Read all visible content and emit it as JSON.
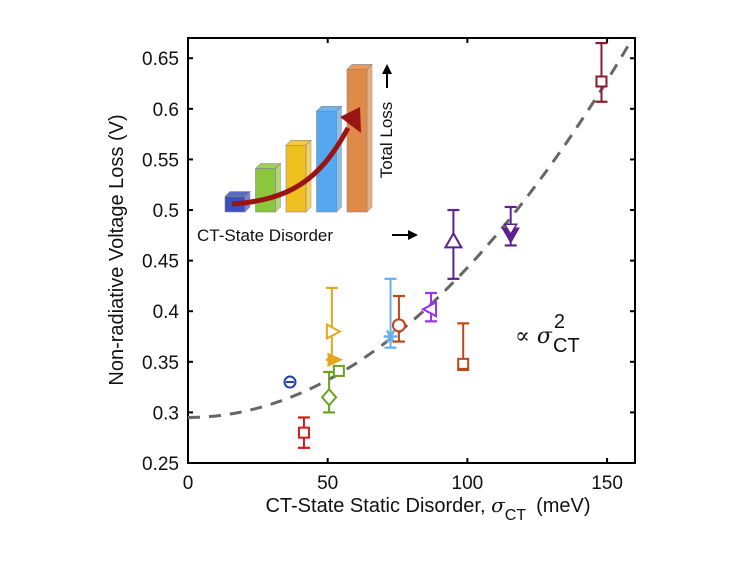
{
  "chart_data": {
    "type": "scatter",
    "title": "",
    "xlabel": "CT-State Static Disorder, ",
    "xlabel_symbol": "σ",
    "xlabel_sub": "CT",
    "xlabel_unit": "(meV)",
    "ylabel": "Non-radiative Voltage Loss (V)",
    "xlim": [
      0,
      160
    ],
    "ylim": [
      0.25,
      0.67
    ],
    "xticks": [
      0,
      50,
      100,
      150
    ],
    "xtick_labels": [
      "0",
      "50",
      "100",
      "150"
    ],
    "yticks": [
      0.25,
      0.3,
      0.35,
      0.4,
      0.45,
      0.5,
      0.55,
      0.6,
      0.65
    ],
    "ytick_labels": [
      "0.25",
      "0.3",
      "0.35",
      "0.4",
      "0.45",
      "0.5",
      "0.55",
      "0.6",
      "0.65"
    ],
    "grid": false,
    "series": [
      {
        "name": "red-square",
        "marker": "square",
        "color": "#d7191c",
        "x": 41.5,
        "y": 0.28,
        "yerr_low": 0.265,
        "yerr_high": 0.295
      },
      {
        "name": "blue-theta",
        "marker": "theta-circle",
        "color": "#1f3fb0",
        "x": 36.5,
        "y": 0.33
      },
      {
        "name": "green-diamond",
        "marker": "diamond",
        "color": "#6aa121",
        "x": 50.5,
        "y": 0.315,
        "yerr_low": 0.3,
        "yerr_high": 0.34
      },
      {
        "name": "green-square",
        "marker": "square",
        "color": "#6aa121",
        "x": 54,
        "y": 0.341
      },
      {
        "name": "gold-triangle-right",
        "marker": "triangle-right",
        "color": "#e3a81b",
        "x": 51.5,
        "y": 0.38,
        "yerr_low": 0.352,
        "yerr_high": 0.423
      },
      {
        "name": "gold-filled-triangle",
        "marker": "triangle-right-filled",
        "color": "#e3a81b",
        "x": 52,
        "y": 0.352
      },
      {
        "name": "lightblue-star",
        "marker": "star",
        "color": "#6aaee8",
        "x": 72.5,
        "y": 0.375,
        "yerr_low": 0.364,
        "yerr_high": 0.432
      },
      {
        "name": "rust-circle",
        "marker": "circle",
        "color": "#c0461a",
        "x": 75.5,
        "y": 0.386,
        "yerr_low": 0.37,
        "yerr_high": 0.415
      },
      {
        "name": "violet-triangle-left",
        "marker": "triangle-left",
        "color": "#9b30f0",
        "x": 87,
        "y": 0.402,
        "yerr_low": 0.39,
        "yerr_high": 0.418
      },
      {
        "name": "purple-triangle-up",
        "marker": "triangle-up",
        "color": "#5b2290",
        "x": 95,
        "y": 0.468,
        "yerr_low": 0.432,
        "yerr_high": 0.5
      },
      {
        "name": "rust-square",
        "marker": "square",
        "color": "#c0461a",
        "x": 98.5,
        "y": 0.348,
        "yerr_low": 0.342,
        "yerr_high": 0.388
      },
      {
        "name": "purple-triangle-down",
        "marker": "triangle-down-filled",
        "color": "#5b2290",
        "x": 115.5,
        "y": 0.476,
        "yerr_low": 0.465,
        "yerr_high": 0.503
      },
      {
        "name": "maroon-square",
        "marker": "square",
        "color": "#8b1a2b",
        "x": 148,
        "y": 0.627,
        "yerr_low": 0.607,
        "yerr_high": 0.665
      }
    ],
    "fit": {
      "type": "quadratic",
      "style": "dashed",
      "color": "#666666",
      "formula": "y = 0.295 + 1.48e-5 * x^2",
      "a": 1.48e-05,
      "c": 0.295,
      "x_range": [
        0,
        160
      ]
    },
    "annotation": {
      "prefix": "∝ ",
      "symbol": "σ",
      "superscript": "2",
      "subscript": "CT"
    },
    "inset": {
      "type": "bar",
      "xlabel": "CT-State Disorder",
      "ylabel": "Total Loss",
      "bar_colors": [
        "#3a4fc0",
        "#8cc63f",
        "#f0c020",
        "#55a8f0",
        "#e08a4a"
      ],
      "values": [
        1,
        2.8,
        4.3,
        6.5,
        9.2
      ],
      "arrow_color": "#9b1414"
    }
  }
}
